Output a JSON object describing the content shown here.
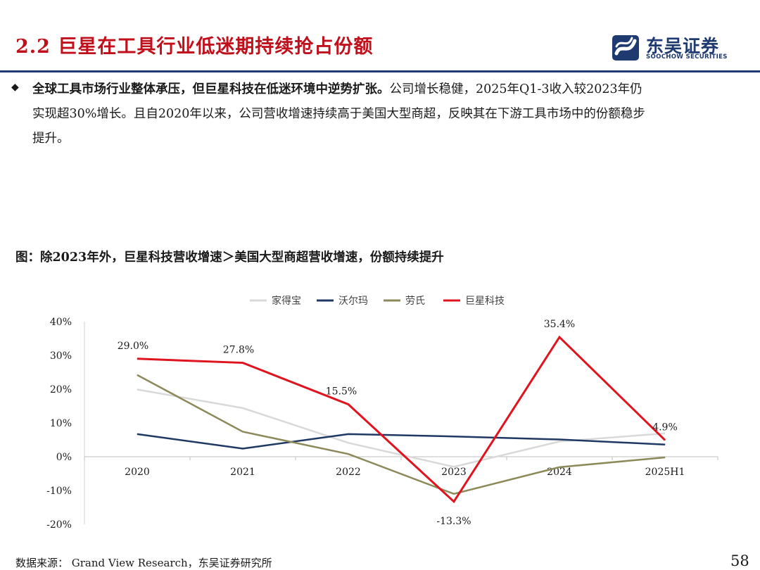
{
  "header": {
    "title": "2.2 巨星在工具行业低迷期持续抢占份额",
    "logo_cn": "东吴证券",
    "logo_en": "SOOCHOW SECURITIES"
  },
  "body": {
    "bold_text": "全球工具市场行业整体承压，但巨星科技在低迷环境中逆势扩张。",
    "line1_rest": "公司增长稳健，2025年Q1-3收入较2023年仍",
    "line2": "实现超30%增长。且自2020年以来，公司营收增速持续高于美国大型商超，反映其在下游工具市场中的份额稳步",
    "line3": "提升。"
  },
  "figure": {
    "caption": "图：除2023年外，巨星科技营收增速＞美国大型商超营收增速，份额持续提升"
  },
  "footer": {
    "source": "数据来源： Grand View Research，东吴证券研究所",
    "page": "58"
  },
  "colors": {
    "brand_red": "#c0101c",
    "brand_navy": "#1f3a70"
  },
  "chart_data": {
    "type": "line",
    "title": "",
    "categories": [
      "2020",
      "2021",
      "2022",
      "2023",
      "2024",
      "2025H1"
    ],
    "ylim": [
      -20,
      40
    ],
    "yticks": [
      -20,
      -10,
      0,
      10,
      20,
      30,
      40
    ],
    "ytick_labels": [
      "-20%",
      "-10%",
      "0%",
      "10%",
      "20%",
      "30%",
      "40%"
    ],
    "legend_position": "top-center",
    "series": [
      {
        "name": "家得宝",
        "color": "#d9d9d9",
        "values": [
          19.9,
          14.4,
          4.1,
          -3.0,
          4.5,
          6.9
        ]
      },
      {
        "name": "沃尔玛",
        "color": "#1f3864",
        "values": [
          6.7,
          2.4,
          6.7,
          6.0,
          5.1,
          3.6
        ]
      },
      {
        "name": "劳氏",
        "color": "#8c8a5a",
        "values": [
          24.2,
          7.4,
          0.8,
          -11.0,
          -3.1,
          -0.2
        ]
      },
      {
        "name": "巨星科技",
        "color": "#e0141e",
        "values": [
          29.0,
          27.8,
          15.5,
          -13.3,
          35.4,
          4.9
        ]
      }
    ],
    "data_labels": {
      "series": "巨星科技",
      "labels": [
        "29.0%",
        "27.8%",
        "15.5%",
        "-13.3%",
        "35.4%",
        "4.9%"
      ]
    }
  }
}
